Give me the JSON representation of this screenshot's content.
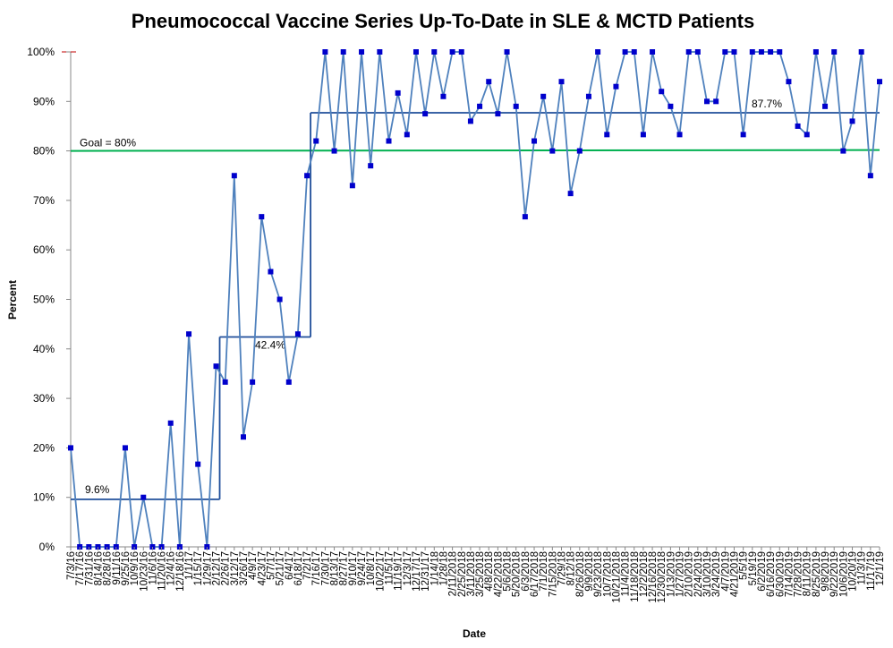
{
  "chart_data": {
    "type": "line",
    "title": "Pneumococcal Vaccine Series Up-To-Date in SLE & MCTD Patients",
    "xlabel": "Date",
    "ylabel": "Percent",
    "ylim": [
      0,
      1
    ],
    "yticks": [
      "0%",
      "10%",
      "20%",
      "30%",
      "40%",
      "50%",
      "60%",
      "70%",
      "80%",
      "90%",
      "100%"
    ],
    "grid": false,
    "categories": [
      "7/3/16",
      "7/17/16",
      "7/31/16",
      "8/14/16",
      "8/28/16",
      "9/11/16",
      "9/25/16",
      "10/9/16",
      "10/23/16",
      "11/6/16",
      "11/20/16",
      "12/4/16",
      "12/18/16",
      "1/1/17",
      "1/15/17",
      "1/29/17",
      "2/12/17",
      "2/26/17",
      "3/12/17",
      "3/26/17",
      "4/9/17",
      "4/23/17",
      "5/7/17",
      "5/21/17",
      "6/4/17",
      "6/18/17",
      "7/2/17",
      "7/16/17",
      "7/30/17",
      "8/13/17",
      "8/27/17",
      "9/10/17",
      "9/24/17",
      "10/8/17",
      "10/22/17",
      "11/5/17",
      "11/19/17",
      "12/3/17",
      "12/17/17",
      "12/31/17",
      "1/14/18",
      "1/28/18",
      "2/11/2018",
      "2/25/2018",
      "3/11/2018",
      "3/25/2018",
      "4/8/2018",
      "4/22/2018",
      "5/6/2018",
      "5/20/2018",
      "6/3/2018",
      "6/17/2018",
      "7/1/2018",
      "7/15/2018",
      "7/29/18",
      "8/12/18",
      "8/26/2018",
      "9/9/2018",
      "9/23/2018",
      "10/7/2018",
      "10/21/2018",
      "11/4/2018",
      "11/18/2018",
      "12/2/2018",
      "12/16/2018",
      "12/30/2018",
      "1/13/2019",
      "1/27/2019",
      "2/10/2019",
      "2/24/2019",
      "3/10/2019",
      "3/24/2019",
      "4/7/2019",
      "4/21/2019",
      "5/5/19",
      "5/19/19",
      "6/2/2019",
      "6/16/2019",
      "6/30/2019",
      "7/14/2019",
      "7/28/2019",
      "8/11/2019",
      "8/25/2019",
      "9/8/2019",
      "9/22/2019",
      "10/6/2019",
      "10/20/19",
      "11/3/19",
      "11/17/19",
      "12/1/19"
    ],
    "visible_tick_labels": [
      "7/3/16",
      "7/17/16",
      "7/31/16",
      "8/14/16",
      "8/28/16",
      "9/11/16",
      "9/25/16",
      "10/9/16",
      "10/23/16",
      "11/6/16",
      "11/20/16",
      "12/4/16",
      "12/18/16",
      "1/1/17",
      "1/15/17",
      "1/29/17",
      "2/12/17",
      "2/26/17",
      "3/12/17",
      "3/26/17",
      "4/9/17",
      "4/23/17",
      "5/7/17",
      "5/21/17",
      "6/4/17",
      "6/18/17",
      "7/2/17",
      "7/16/17",
      "7/30/17",
      "8/13/17",
      "8/27/17",
      "9/10/17",
      "9/24/17",
      "10/8/17",
      "10/22/17",
      "11/5/17",
      "11/19/17",
      "12/3/17",
      "12/17/17",
      "12/31/17",
      "1/14/18",
      "1/28/18",
      "2/11/2018",
      "2/25/2018",
      "3/11/2018",
      "3/25/2018",
      "4/8/2018",
      "4/22/2018",
      "5/6/2018",
      "5/20/2018",
      "6/3/2018",
      "6/17/2018",
      "7/1/2018",
      "7/15/2018",
      "7/29/18",
      "8/12/18",
      "8/26/2018",
      "9/9/2018",
      "9/23/2018",
      "10/7/2018",
      "10/21/2018",
      "11/4/2018",
      "11/18/2018",
      "12/2/2018",
      "12/16/2018",
      "12/30/2018",
      "1/13/2019",
      "1/27/2019",
      "2/10/2019",
      "2/24/2019",
      "3/10/2019",
      "3/24/2019",
      "4/7/2019",
      "4/21/2019",
      "5/5/19",
      "5/19/19",
      "6/2/2019",
      "6/16/2019",
      "6/30/2019",
      "7/14/2019",
      "7/28/2019",
      "8/11/2019",
      "8/25/2019",
      "9/8/2019",
      "9/22/2019",
      "10/6/2019",
      "10/20/19",
      "11/3/19",
      "11/17/19",
      "12/1/19"
    ],
    "series": [
      {
        "values": [
          0.2,
          0,
          0,
          0,
          0,
          0,
          0.2,
          0,
          0.1,
          0,
          0,
          0.25,
          0,
          0.43,
          0.167,
          0,
          0.365,
          0.333,
          0.75,
          0.222,
          0.333,
          0.667,
          0.556,
          0.5,
          0.333,
          0.43,
          0.75,
          0.82,
          1.0,
          0.8,
          1.0,
          0.73,
          1.0,
          0.77,
          1.0,
          0.82,
          0.917,
          0.833,
          1.0,
          0.875,
          1.0,
          0.91,
          1.0,
          1.0,
          0.86,
          0.89,
          0.94,
          0.875,
          1.0,
          0.89,
          0.667,
          0.82,
          0.91,
          0.8,
          0.94,
          0.714,
          0.8,
          0.91,
          1.0,
          0.833,
          0.93,
          1.0,
          1.0,
          0.833,
          1.0,
          0.92,
          0.89,
          0.833,
          1.0,
          1.0,
          0.9,
          0.9,
          1.0,
          1.0,
          0.833,
          1.0,
          1.0,
          1.0,
          1.0,
          0.94,
          0.85,
          0.833,
          1.0,
          0.89,
          1.0,
          0.8,
          0.86,
          1.0,
          0.75,
          0.94
        ],
        "color": "#4f81bd",
        "marker_color": "#0000cc"
      }
    ],
    "median_segments": [
      {
        "label": "9.6%",
        "value": 0.096,
        "start_index": 0,
        "end_index": 15
      },
      {
        "label": "42.4%",
        "value": 0.424,
        "start_index": 16,
        "end_index": 25
      },
      {
        "label": "87.7%",
        "value": 0.877,
        "start_index": 26,
        "end_index": 89
      }
    ],
    "median_color": "#1f4e9a",
    "goal": {
      "label": "Goal = 80%",
      "value": 0.8,
      "color": "#00b050"
    }
  }
}
